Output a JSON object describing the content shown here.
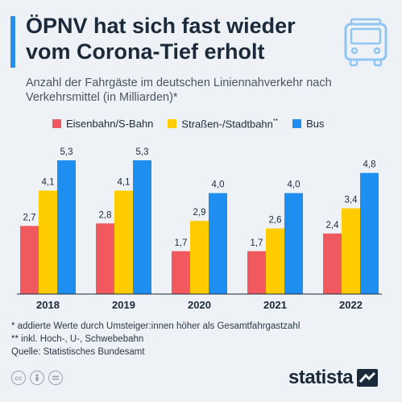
{
  "header": {
    "title": "ÖPNV hat sich fast wieder vom Corona-Tief erholt",
    "subtitle": "Anzahl der Fahrgäste im deutschen Liniennahverkehr nach Verkehrsmittel (in Milliarden)*"
  },
  "legend": {
    "items": [
      {
        "label": "Eisenbahn/S-Bahn",
        "sup": ""
      },
      {
        "label": "Straßen-/Stadtbahn",
        "sup": "**"
      },
      {
        "label": "Bus",
        "sup": ""
      }
    ]
  },
  "colors": {
    "accent": "#2d8ee8",
    "eisenbahn": "#f05a5e",
    "strassenbahn": "#ffcc00",
    "bus": "#1f8ef1",
    "icon": "#8ec5f3"
  },
  "chart_data": {
    "type": "bar",
    "categories": [
      "2018",
      "2019",
      "2020",
      "2021",
      "2022"
    ],
    "series": [
      {
        "name": "Eisenbahn/S-Bahn",
        "values": [
          2.7,
          2.8,
          1.7,
          1.7,
          2.4
        ],
        "labels": [
          "2,7",
          "2,8",
          "1,7",
          "1,7",
          "2,4"
        ]
      },
      {
        "name": "Straßen-/Stadtbahn**",
        "values": [
          4.1,
          4.1,
          2.9,
          2.6,
          3.4
        ],
        "labels": [
          "4,1",
          "4,1",
          "2,9",
          "2,6",
          "3,4"
        ]
      },
      {
        "name": "Bus",
        "values": [
          5.3,
          5.3,
          4.0,
          4.0,
          4.8
        ],
        "labels": [
          "5,3",
          "5,3",
          "4,0",
          "4,0",
          "4,8"
        ]
      }
    ],
    "ylim": [
      0,
      5.3
    ],
    "grid": false,
    "legend_position": "top"
  },
  "footnotes": {
    "line1": "*   addierte Werte durch Umsteiger:innen höher als Gesamtfahrgastzahl",
    "line2": "** inkl. Hoch-, U-, Schwebebahn",
    "source": "Quelle: Statistisches Bundesamt"
  },
  "license_icons": [
    "cc-icon",
    "by-icon",
    "nd-icon"
  ],
  "brand": {
    "name": "statista"
  }
}
